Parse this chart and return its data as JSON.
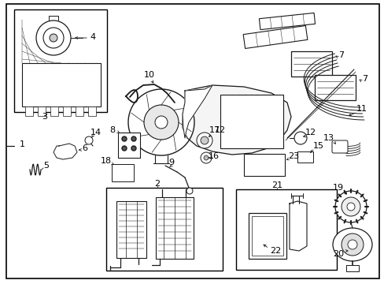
{
  "fig_width": 4.89,
  "fig_height": 3.6,
  "dpi": 100,
  "line_color": "#1a1a1a",
  "label_color": "#000000",
  "bg_color": "#ffffff"
}
